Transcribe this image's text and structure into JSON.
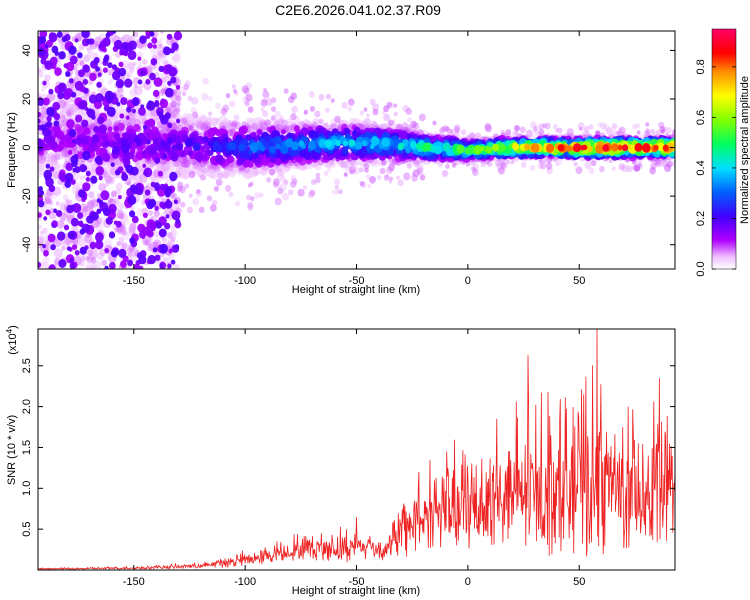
{
  "title": "C2E6.2026.041.02.37.R09",
  "chart_data": [
    {
      "type": "heatmap",
      "xlabel": "Height of straight line (km)",
      "ylabel": "Frequency (Hz)",
      "xlim": [
        -193,
        93
      ],
      "ylim": [
        -50,
        48
      ],
      "xticks": [
        -150,
        -100,
        -50,
        0,
        50
      ],
      "yticks": [
        -40,
        -20,
        0,
        20,
        40
      ],
      "xtick_labels": [
        "-150",
        "-100",
        "-50",
        "0",
        "50"
      ],
      "ytick_labels": [
        "-40",
        "-20",
        "0",
        "20",
        "40"
      ],
      "colorbar": {
        "label": "Normalized spectral amplitude",
        "range": [
          0,
          0.95
        ],
        "ticks": [
          0.0,
          0.2,
          0.4,
          0.6,
          0.8
        ],
        "tick_labels": [
          "0.0",
          "0.2",
          "0.4",
          "0.6",
          "0.8"
        ],
        "colormap": [
          "#ffffff",
          "#ff00ff",
          "#8800ff",
          "#0000ff",
          "#00ffff",
          "#00ff00",
          "#ffff00",
          "#ff8800",
          "#ff0000",
          "#ff0066"
        ]
      },
      "band": {
        "x": [
          -193,
          -150,
          -130,
          -100,
          -80,
          -50,
          -30,
          -20,
          0,
          20,
          50,
          93
        ],
        "center_freq": [
          3,
          2,
          1,
          0,
          1,
          2,
          1,
          0,
          -1,
          0,
          0,
          0
        ],
        "half_width": [
          10,
          10,
          9,
          8,
          7,
          6,
          5,
          4,
          3,
          3,
          3,
          3
        ],
        "peak_amplitude": [
          0.15,
          0.18,
          0.2,
          0.3,
          0.35,
          0.4,
          0.45,
          0.5,
          0.55,
          0.7,
          0.85,
          0.9
        ]
      },
      "scatter_extent": {
        "x_min": -193,
        "x_max": -130,
        "freq_min": -50,
        "freq_max": 48
      }
    },
    {
      "type": "line",
      "xlabel": "Height of straight line (km)",
      "ylabel": "SNR (10 * v/v)",
      "multiplier": "(x10",
      "multiplier_exp": "4",
      "xlim": [
        -193,
        93
      ],
      "ylim": [
        0,
        2.95
      ],
      "xticks": [
        -150,
        -100,
        -50,
        0,
        50
      ],
      "yticks": [
        0.5,
        1.0,
        1.5,
        2.0,
        2.5
      ],
      "xtick_labels": [
        "-150",
        "-100",
        "-50",
        "0",
        "50"
      ],
      "ytick_labels": [
        "0.5",
        "1.0",
        "1.5",
        "2.0",
        "2.5"
      ],
      "color": "#ee2222",
      "envelope": {
        "x": [
          -193,
          -150,
          -120,
          -105,
          -95,
          -85,
          -75,
          -65,
          -55,
          -45,
          -38,
          -30,
          -22,
          -15,
          -5,
          5,
          15,
          25,
          35,
          45,
          55,
          65,
          75,
          85,
          93
        ],
        "base": [
          0.01,
          0.02,
          0.04,
          0.08,
          0.12,
          0.18,
          0.22,
          0.22,
          0.22,
          0.25,
          0.2,
          0.35,
          0.5,
          0.6,
          0.6,
          0.6,
          0.7,
          0.75,
          0.75,
          0.8,
          0.8,
          0.75,
          0.75,
          0.75,
          0.8
        ],
        "spread": [
          0.01,
          0.02,
          0.04,
          0.1,
          0.12,
          0.15,
          0.18,
          0.2,
          0.25,
          0.2,
          0.15,
          0.4,
          0.6,
          0.6,
          0.7,
          0.8,
          0.9,
          1.0,
          1.1,
          1.1,
          1.2,
          1.1,
          1.0,
          1.0,
          0.8
        ]
      },
      "spikes": [
        {
          "x": -50,
          "y": 0.65
        },
        {
          "x": -22,
          "y": 1.2
        },
        {
          "x": 13,
          "y": 1.85
        },
        {
          "x": 27,
          "y": 2.63
        },
        {
          "x": 36,
          "y": 2.18
        },
        {
          "x": 52,
          "y": 2.15
        },
        {
          "x": 58,
          "y": 2.95
        },
        {
          "x": 72,
          "y": 2.0
        },
        {
          "x": 86,
          "y": 2.35
        }
      ]
    }
  ]
}
